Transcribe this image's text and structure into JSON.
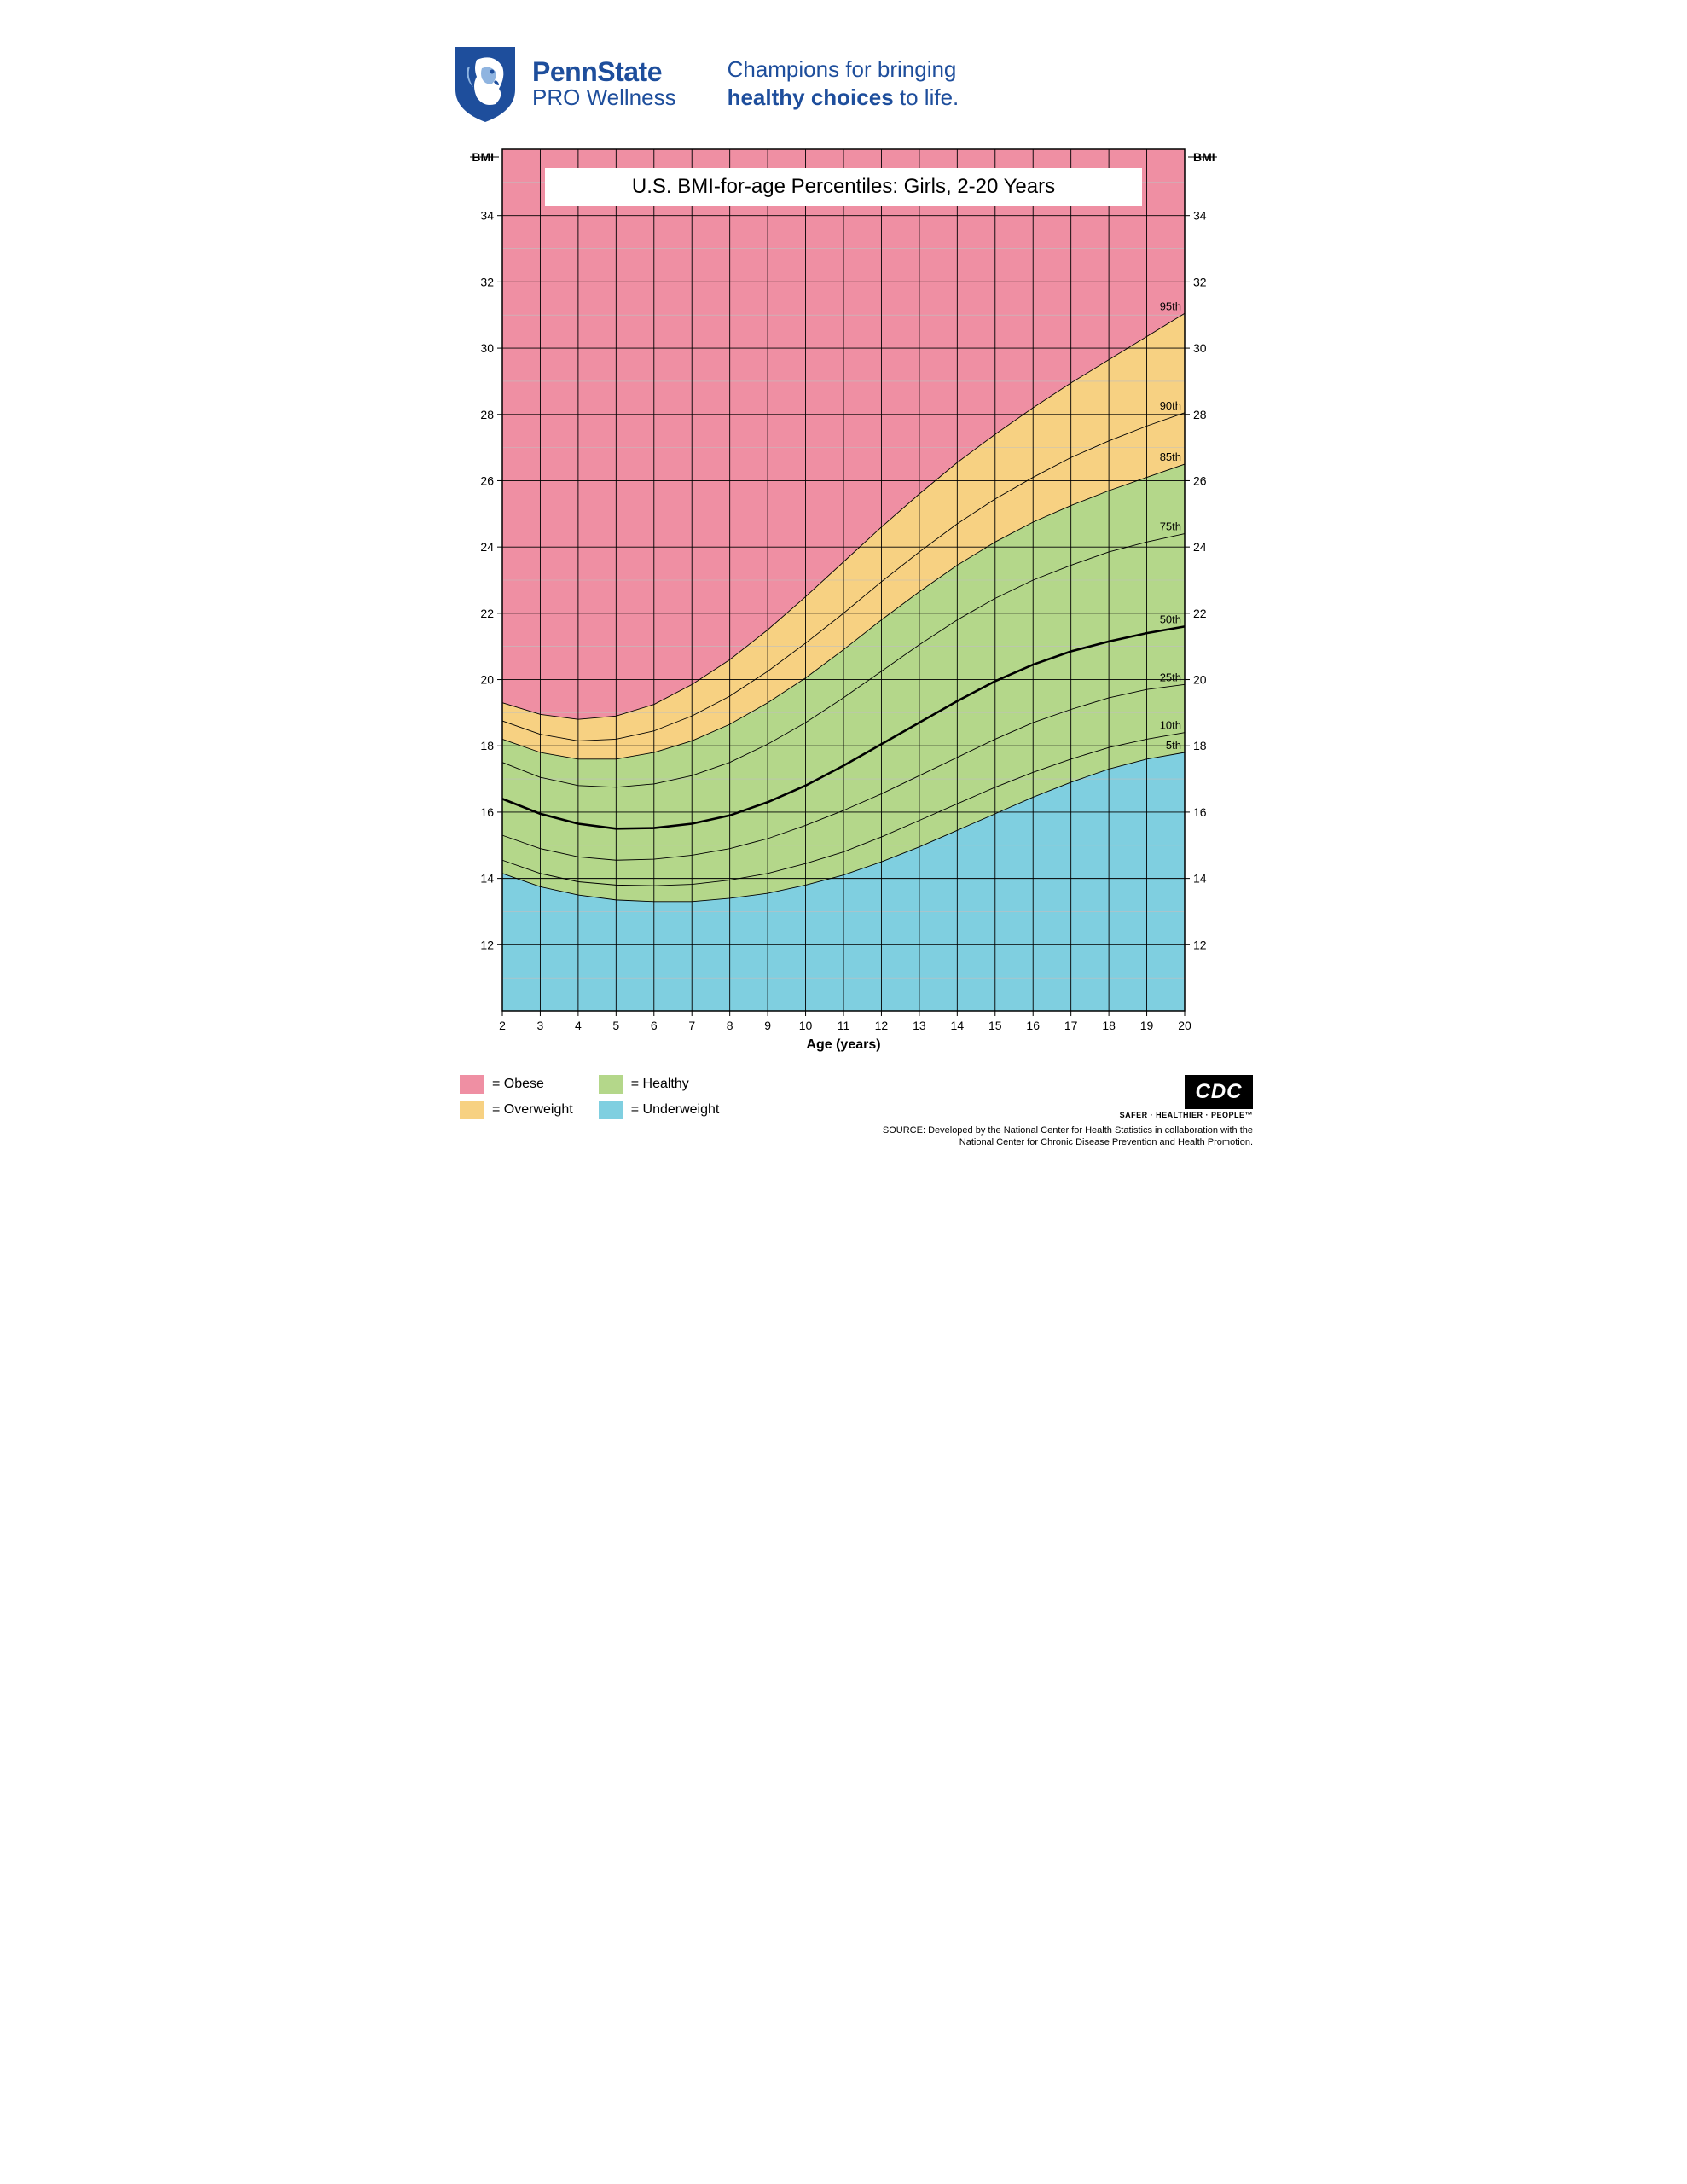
{
  "brand": {
    "name_line1": "PennState",
    "name_line2": "PRO Wellness",
    "tagline_pre": "Champions for bringing",
    "tagline_bold": "healthy choices",
    "tagline_post": " to life.",
    "color": "#1e4e9c"
  },
  "chart": {
    "title": "U.S. BMI-for-age Percentiles: Girls, 2-20 Years",
    "x_label": "Age (years)",
    "y_label_left": "BMI",
    "y_label_right": "BMI",
    "x_min": 2,
    "x_max": 20,
    "y_min": 10,
    "y_max": 36,
    "x_ticks": [
      2,
      3,
      4,
      5,
      6,
      7,
      8,
      9,
      10,
      11,
      12,
      13,
      14,
      15,
      16,
      17,
      18,
      19,
      20
    ],
    "y_ticks": [
      12,
      14,
      16,
      18,
      20,
      22,
      24,
      26,
      28,
      30,
      32,
      34
    ],
    "tick_fontsize": 14,
    "label_fontsize": 16,
    "title_fontsize": 24,
    "grid_major_color": "#000000",
    "grid_minor_color": "#bfbfbf",
    "axis_color": "#000000",
    "background_color": "#ffffff",
    "pct_label_fontsize": 13,
    "percentile_line_color": "#000000",
    "percentile_line_width_thin": 0.9,
    "percentile_line_width_50": 2.6,
    "regions": {
      "obese": {
        "color": "#ef8fa3",
        "label": "= Obese"
      },
      "overweight": {
        "color": "#f7d182",
        "label": "= Overweight"
      },
      "healthy": {
        "color": "#b4d78a",
        "label": "= Healthy"
      },
      "underweight": {
        "color": "#7fcfe0",
        "label": "= Underweight"
      }
    },
    "percentiles": [
      {
        "label": "5th",
        "values": [
          14.15,
          13.75,
          13.5,
          13.35,
          13.3,
          13.3,
          13.4,
          13.55,
          13.8,
          14.1,
          14.5,
          14.95,
          15.45,
          15.95,
          16.45,
          16.9,
          17.3,
          17.6,
          17.8
        ]
      },
      {
        "label": "10th",
        "values": [
          14.55,
          14.15,
          13.9,
          13.8,
          13.78,
          13.82,
          13.95,
          14.15,
          14.45,
          14.8,
          15.25,
          15.75,
          16.25,
          16.75,
          17.2,
          17.6,
          17.95,
          18.2,
          18.4
        ]
      },
      {
        "label": "25th",
        "values": [
          15.3,
          14.9,
          14.65,
          14.55,
          14.58,
          14.7,
          14.9,
          15.2,
          15.6,
          16.05,
          16.55,
          17.1,
          17.65,
          18.2,
          18.7,
          19.1,
          19.45,
          19.7,
          19.85
        ]
      },
      {
        "label": "50th",
        "values": [
          16.4,
          15.95,
          15.65,
          15.5,
          15.52,
          15.65,
          15.9,
          16.3,
          16.8,
          17.4,
          18.05,
          18.7,
          19.35,
          19.95,
          20.45,
          20.85,
          21.15,
          21.4,
          21.6
        ]
      },
      {
        "label": "75th",
        "values": [
          17.5,
          17.05,
          16.8,
          16.75,
          16.85,
          17.1,
          17.5,
          18.05,
          18.7,
          19.45,
          20.25,
          21.05,
          21.8,
          22.45,
          23.0,
          23.45,
          23.85,
          24.15,
          24.4
        ]
      },
      {
        "label": "85th",
        "values": [
          18.2,
          17.8,
          17.6,
          17.6,
          17.8,
          18.15,
          18.65,
          19.3,
          20.05,
          20.9,
          21.8,
          22.65,
          23.45,
          24.15,
          24.75,
          25.25,
          25.7,
          26.1,
          26.5
        ]
      },
      {
        "label": "90th",
        "values": [
          18.75,
          18.35,
          18.15,
          18.2,
          18.45,
          18.9,
          19.5,
          20.25,
          21.1,
          22.0,
          22.95,
          23.85,
          24.7,
          25.45,
          26.1,
          26.7,
          27.2,
          27.65,
          28.05
        ]
      },
      {
        "label": "95th",
        "values": [
          19.3,
          18.95,
          18.8,
          18.9,
          19.25,
          19.85,
          20.6,
          21.5,
          22.5,
          23.55,
          24.6,
          25.6,
          26.55,
          27.4,
          28.2,
          28.95,
          29.65,
          30.35,
          31.05
        ]
      }
    ]
  },
  "source": {
    "cdc": "CDC",
    "cdc_tag": "SAFER · HEALTHIER · PEOPLE™",
    "text": "SOURCE: Developed by the National Center for Health Statistics in collaboration with the National Center for Chronic Disease Prevention and Health Promotion."
  }
}
